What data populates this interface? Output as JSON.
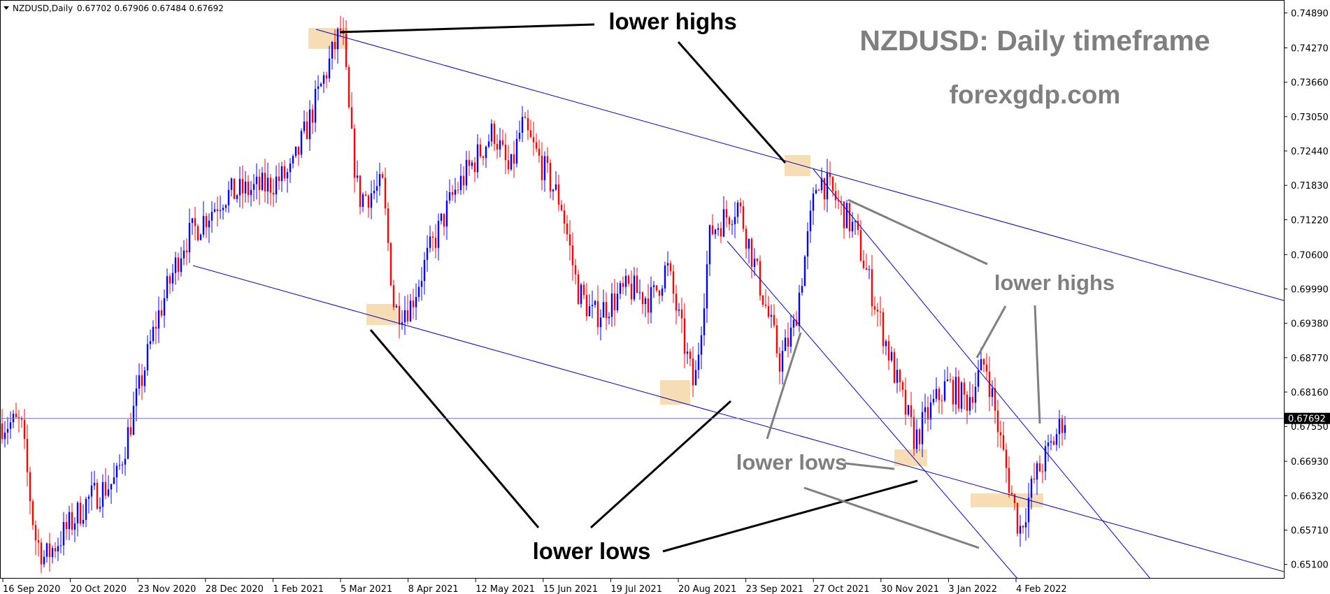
{
  "header": {
    "symbol": "NZDUSD,Daily",
    "ohlc": "0.67702 0.67906 0.67484 0.67692"
  },
  "colors": {
    "bull": "#0000ff",
    "bear": "#ff0000",
    "trendline": "#0000cd",
    "zone": "#f6d7a7",
    "grid_line": "#6f6fbf",
    "price_tag_bg": "#000000"
  },
  "chart_data": {
    "type": "candlestick",
    "title": "NZDUSD: Daily timeframe",
    "subtitle": "forexgdp.com",
    "xlabel": "",
    "ylabel": "",
    "y_axis_side": "right",
    "ylim": [
      0.6486,
      0.7512
    ],
    "y_ticks": [
      "0.74890",
      "0.74270",
      "0.73660",
      "0.73050",
      "0.72440",
      "0.71830",
      "0.71220",
      "0.70600",
      "0.69990",
      "0.69380",
      "0.68770",
      "0.68160",
      "0.67550",
      "0.66930",
      "0.66320",
      "0.65710",
      "0.65100"
    ],
    "x_ticks": [
      "16 Sep 2020",
      "20 Oct 2020",
      "23 Nov 2020",
      "28 Dec 2020",
      "1 Feb 2021",
      "5 Mar 2021",
      "8 Apr 2021",
      "12 May 2021",
      "15 Jun 2021",
      "19 Jul 2021",
      "20 Aug 2021",
      "23 Sep 2021",
      "27 Oct 2021",
      "30 Nov 2021",
      "3 Jan 2022",
      "4 Feb 2022"
    ],
    "current_price": 0.67692,
    "current_price_label": "0.67692",
    "annotations": [
      {
        "text": "lower highs"
      },
      {
        "text": "lower highs"
      },
      {
        "text": "lower lows"
      },
      {
        "text": "lower lows"
      }
    ],
    "series": {
      "close_path": [
        [
          "16 Sep 2020",
          0.676
        ],
        [
          "23 Sep 2020",
          0.656
        ],
        [
          "28 Sep 2020",
          0.652
        ],
        [
          "20 Oct 2020",
          0.6625
        ],
        [
          "3 Nov 2020",
          0.666
        ],
        [
          "23 Nov 2020",
          0.694
        ],
        [
          "7 Dec 2020",
          0.708
        ],
        [
          "28 Dec 2020",
          0.7165
        ],
        [
          "18 Jan 2021",
          0.718
        ],
        [
          "1 Feb 2021",
          0.7205
        ],
        [
          "25 Feb 2021",
          0.7465
        ],
        [
          "1 Mar 2021",
          0.728
        ],
        [
          "5 Mar 2021",
          0.716
        ],
        [
          "17 Mar 2021",
          0.718
        ],
        [
          "23 Mar 2021",
          0.696
        ],
        [
          "31 Mar 2021",
          0.697
        ],
        [
          "8 Apr 2021",
          0.705
        ],
        [
          "22 Apr 2021",
          0.717
        ],
        [
          "12 May 2021",
          0.728
        ],
        [
          "20 May 2021",
          0.72
        ],
        [
          "26 May 2021",
          0.729
        ],
        [
          "15 Jun 2021",
          0.715
        ],
        [
          "23 Jun 2021",
          0.7
        ],
        [
          "1 Jul 2021",
          0.695
        ],
        [
          "19 Jul 2021",
          0.7
        ],
        [
          "30 Jul 2021",
          0.698
        ],
        [
          "6 Aug 2021",
          0.704
        ],
        [
          "19 Aug 2021",
          0.682
        ],
        [
          "27 Aug 2021",
          0.71
        ],
        [
          "10 Sep 2021",
          0.715
        ],
        [
          "23 Sep 2021",
          0.698
        ],
        [
          "1 Oct 2021",
          0.687
        ],
        [
          "8 Oct 2021",
          0.693
        ],
        [
          "20 Oct 2021",
          0.72
        ],
        [
          "27 Oct 2021",
          0.717
        ],
        [
          "8 Nov 2021",
          0.71
        ],
        [
          "30 Nov 2021",
          0.682
        ],
        [
          "8 Dec 2021",
          0.673
        ],
        [
          "15 Dec 2021",
          0.678
        ],
        [
          "24 Dec 2021",
          0.683
        ],
        [
          "3 Jan 2022",
          0.68
        ],
        [
          "12 Jan 2022",
          0.687
        ],
        [
          "20 Jan 2022",
          0.671
        ],
        [
          "28 Jan 2022",
          0.657
        ],
        [
          "4 Feb 2022",
          0.666
        ],
        [
          "12 Feb 2022",
          0.672
        ],
        [
          "18 Feb 2022",
          0.677
        ]
      ]
    }
  }
}
